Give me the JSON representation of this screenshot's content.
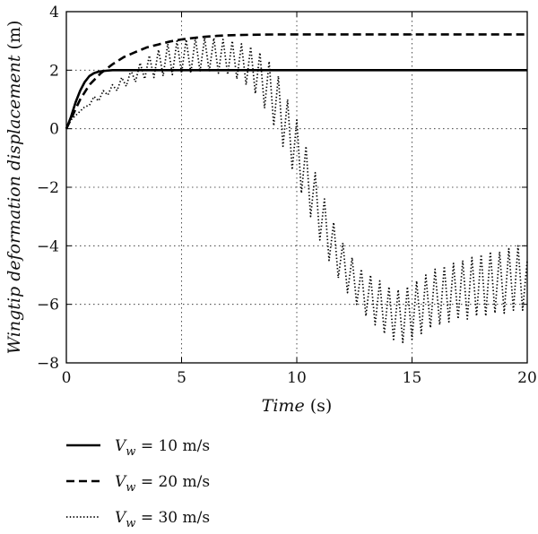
{
  "chart_data": {
    "type": "line",
    "xlabel": {
      "main": "Time",
      "unit": "(s)"
    },
    "ylabel": {
      "main": "Wingtip deformation displacement",
      "unit": "(m)"
    },
    "xlim": [
      0,
      20
    ],
    "ylim": [
      -8,
      4
    ],
    "xticks": [
      "0",
      "5",
      "10",
      "15",
      "20"
    ],
    "yticks": [
      "4",
      "2",
      "0",
      "−2",
      "−4",
      "−6",
      "−8"
    ],
    "xtick_values": [
      0,
      5,
      10,
      15,
      20
    ],
    "ytick_values": [
      4,
      2,
      0,
      -2,
      -4,
      -6,
      -8
    ],
    "grid": true,
    "legend_position": "below",
    "series": [
      {
        "name": {
          "base": "V",
          "sub": "w",
          "rest": " = 10 m/s"
        },
        "style": "solid",
        "x": [
          0,
          0.2,
          0.4,
          0.6,
          0.8,
          1.0,
          1.2,
          1.4,
          1.7,
          2.0,
          3.0,
          4.0,
          6.0,
          8.0,
          10,
          12,
          14,
          16,
          18,
          20
        ],
        "y": [
          0,
          0.4,
          0.9,
          1.3,
          1.6,
          1.8,
          1.9,
          1.95,
          1.98,
          2.0,
          2.0,
          2.0,
          2.0,
          2.0,
          2.0,
          2.0,
          2.0,
          2.0,
          2.0,
          2.0
        ]
      },
      {
        "name": {
          "base": "V",
          "sub": "w",
          "rest": " = 20 m/s"
        },
        "style": "dashed",
        "x": [
          0,
          0.3,
          0.6,
          1.0,
          1.5,
          2.0,
          2.5,
          3.0,
          3.5,
          4.0,
          4.5,
          5.0,
          5.5,
          6.0,
          6.5,
          7.0,
          7.5,
          8.0,
          9.0,
          10,
          12,
          14,
          16,
          18,
          20
        ],
        "y": [
          0,
          0.5,
          1.0,
          1.5,
          1.9,
          2.2,
          2.45,
          2.62,
          2.78,
          2.88,
          2.98,
          3.05,
          3.1,
          3.14,
          3.17,
          3.19,
          3.2,
          3.21,
          3.22,
          3.22,
          3.22,
          3.22,
          3.22,
          3.22,
          3.22
        ]
      },
      {
        "name": {
          "base": "V",
          "sub": "w",
          "rest": " = 30 m/s"
        },
        "style": "dotted",
        "x": [
          0,
          0.2,
          0.4,
          0.6,
          0.8,
          1.0,
          1.2,
          1.4,
          1.6,
          1.8,
          2.0,
          2.2,
          2.4,
          2.6,
          2.8,
          3.0,
          3.2,
          3.4,
          3.6,
          3.8,
          4.0,
          4.2,
          4.4,
          4.6,
          4.8,
          5.0,
          5.2,
          5.4,
          5.6,
          5.8,
          6.0,
          6.2,
          6.4,
          6.6,
          6.8,
          7.0,
          7.2,
          7.4,
          7.6,
          7.8,
          8.0,
          8.2,
          8.4,
          8.6,
          8.8,
          9.0,
          9.2,
          9.4,
          9.6,
          9.8,
          10.0,
          10.2,
          10.4,
          10.6,
          10.8,
          11.0,
          11.2,
          11.4,
          11.6,
          11.8,
          12.0,
          12.2,
          12.4,
          12.6,
          12.8,
          13.0,
          13.2,
          13.4,
          13.6,
          13.8,
          14.0,
          14.2,
          14.4,
          14.6,
          14.8,
          15.0,
          15.2,
          15.4,
          15.6,
          15.8,
          16.0,
          16.2,
          16.4,
          16.6,
          16.8,
          17.0,
          17.2,
          17.4,
          17.6,
          17.8,
          18.0,
          18.2,
          18.4,
          18.6,
          18.8,
          19.0,
          19.2,
          19.4,
          19.6,
          19.8,
          20.0
        ],
        "y": [
          0,
          0.3,
          0.45,
          0.6,
          0.75,
          0.8,
          1.1,
          0.95,
          1.3,
          1.15,
          1.5,
          1.3,
          1.75,
          1.45,
          2.0,
          1.6,
          2.25,
          1.7,
          2.5,
          1.75,
          2.7,
          1.8,
          2.9,
          1.85,
          3.0,
          1.9,
          3.05,
          1.9,
          3.1,
          1.95,
          3.1,
          1.95,
          3.1,
          1.9,
          3.05,
          1.85,
          3.0,
          1.7,
          2.9,
          1.5,
          2.8,
          1.2,
          2.6,
          0.7,
          2.3,
          0.1,
          1.8,
          -0.6,
          1.0,
          -1.4,
          0.3,
          -2.2,
          -0.6,
          -3.0,
          -1.5,
          -3.8,
          -2.4,
          -4.5,
          -3.2,
          -5.1,
          -3.9,
          -5.6,
          -4.4,
          -6.0,
          -4.8,
          -6.4,
          -5.0,
          -6.7,
          -5.2,
          -7.0,
          -5.4,
          -7.2,
          -5.5,
          -7.3,
          -5.4,
          -7.2,
          -5.2,
          -7.0,
          -5.0,
          -6.8,
          -4.8,
          -6.7,
          -4.7,
          -6.6,
          -4.6,
          -6.5,
          -4.5,
          -6.5,
          -4.4,
          -6.4,
          -4.3,
          -6.4,
          -4.2,
          -6.3,
          -4.2,
          -6.3,
          -4.1,
          -6.2,
          -4.0,
          -6.2,
          -4.5
        ]
      }
    ]
  }
}
